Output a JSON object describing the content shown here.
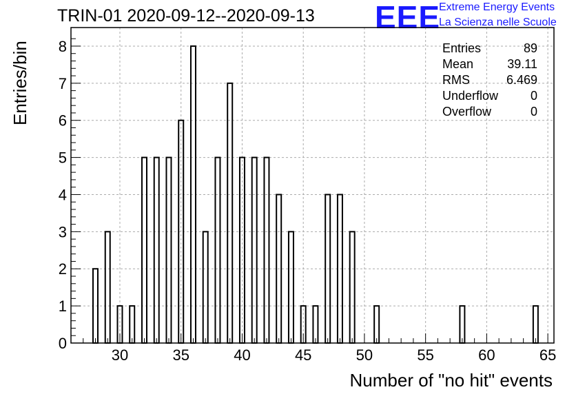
{
  "header": {
    "title": "TRIN-01 2020-09-12--2020-09-13",
    "logo_text": "EEE",
    "logo_line1": "Extreme Energy Events",
    "logo_line2": "La Scienza nelle Scuole"
  },
  "stats": [
    {
      "key": "Entries",
      "value": "89"
    },
    {
      "key": "Mean",
      "value": "39.11"
    },
    {
      "key": "RMS",
      "value": "6.469"
    },
    {
      "key": "Underflow",
      "value": "0"
    },
    {
      "key": "Overflow",
      "value": "0"
    }
  ],
  "chart_data": {
    "type": "bar",
    "title": "TRIN-01 2020-09-12--2020-09-13",
    "xlabel": "Number of \"no hit\" events",
    "ylabel": "Entries/bin",
    "xlim": [
      26,
      65.5
    ],
    "ylim": [
      0,
      8.5
    ],
    "grid": true,
    "x_ticks": [
      30,
      35,
      40,
      45,
      50,
      55,
      60,
      65
    ],
    "y_ticks": [
      0,
      1,
      2,
      3,
      4,
      5,
      6,
      7,
      8
    ],
    "bin_width": 1,
    "bins": [
      {
        "x": 28,
        "count": 2
      },
      {
        "x": 29,
        "count": 3
      },
      {
        "x": 30,
        "count": 1
      },
      {
        "x": 31,
        "count": 1
      },
      {
        "x": 32,
        "count": 5
      },
      {
        "x": 33,
        "count": 5
      },
      {
        "x": 34,
        "count": 5
      },
      {
        "x": 35,
        "count": 6
      },
      {
        "x": 36,
        "count": 8
      },
      {
        "x": 37,
        "count": 3
      },
      {
        "x": 38,
        "count": 5
      },
      {
        "x": 39,
        "count": 7
      },
      {
        "x": 40,
        "count": 5
      },
      {
        "x": 41,
        "count": 5
      },
      {
        "x": 42,
        "count": 5
      },
      {
        "x": 43,
        "count": 4
      },
      {
        "x": 44,
        "count": 3
      },
      {
        "x": 45,
        "count": 1
      },
      {
        "x": 46,
        "count": 1
      },
      {
        "x": 47,
        "count": 4
      },
      {
        "x": 48,
        "count": 4
      },
      {
        "x": 49,
        "count": 3
      },
      {
        "x": 51,
        "count": 1
      },
      {
        "x": 58,
        "count": 1
      },
      {
        "x": 64,
        "count": 1
      }
    ]
  },
  "colors": {
    "bar_stroke": "#000000",
    "grid": "#aaaaaa",
    "logo": "#1a1aff"
  }
}
